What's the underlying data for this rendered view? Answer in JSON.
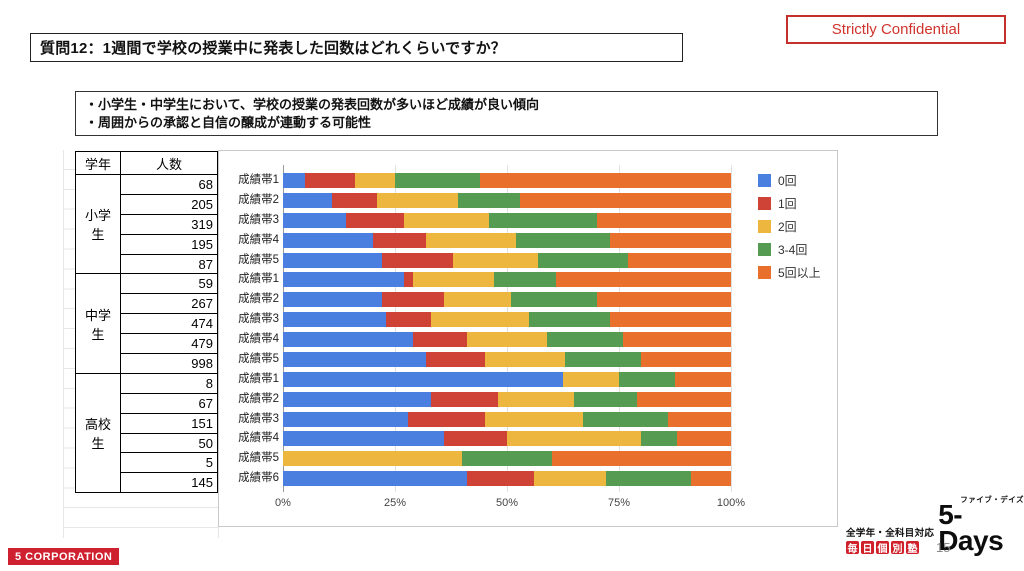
{
  "header": {
    "question_title": "質問12：1週間で学校の授業中に発表した回数はどれくらいですか？",
    "confidential_label": "Strictly Confidential"
  },
  "insight": {
    "lines": [
      "・小学生・中学生において、学校の授業の発表回数が多いほど成績が良い傾向",
      "・周囲からの承認と自信の醸成が連動する可能性"
    ]
  },
  "table": {
    "headers": {
      "grade": "学年",
      "count": "人数"
    },
    "groups": [
      {
        "name": "小学生",
        "counts": [
          68,
          205,
          319,
          195,
          87
        ]
      },
      {
        "name": "中学生",
        "counts": [
          59,
          267,
          474,
          479,
          998
        ]
      },
      {
        "name": "高校生",
        "counts": [
          8,
          67,
          151,
          50,
          5,
          145
        ]
      }
    ]
  },
  "chart_data": {
    "type": "bar",
    "variant": "horizontal-stacked-percent",
    "title": "",
    "xlabel": "",
    "ylabel": "",
    "xlim": [
      0,
      100
    ],
    "x_ticks": [
      "0%",
      "25%",
      "50%",
      "75%",
      "100%"
    ],
    "grid": true,
    "legend_position": "right-inside",
    "legend": [
      "0回",
      "1回",
      "2回",
      "3-4回",
      "5回以上"
    ],
    "colors": [
      "#4a7fe0",
      "#cf4336",
      "#edb63e",
      "#569b52",
      "#e8702c"
    ],
    "groups": [
      {
        "name": "小学生",
        "rows": [
          {
            "label": "成績帯1",
            "values": [
              5,
              11,
              9,
              19,
              56
            ]
          },
          {
            "label": "成績帯2",
            "values": [
              11,
              10,
              18,
              14,
              47
            ]
          },
          {
            "label": "成績帯3",
            "values": [
              14,
              13,
              19,
              24,
              30
            ]
          },
          {
            "label": "成績帯4",
            "values": [
              20,
              12,
              20,
              21,
              27
            ]
          },
          {
            "label": "成績帯5",
            "values": [
              22,
              16,
              19,
              20,
              23
            ]
          }
        ]
      },
      {
        "name": "中学生",
        "rows": [
          {
            "label": "成績帯1",
            "values": [
              27,
              2,
              18,
              14,
              39
            ]
          },
          {
            "label": "成績帯2",
            "values": [
              22,
              14,
              15,
              19,
              30
            ]
          },
          {
            "label": "成績帯3",
            "values": [
              23,
              10,
              22,
              18,
              27
            ]
          },
          {
            "label": "成績帯4",
            "values": [
              29,
              12,
              18,
              17,
              24
            ]
          },
          {
            "label": "成績帯5",
            "values": [
              32,
              13,
              18,
              17,
              20
            ]
          }
        ]
      },
      {
        "name": "高校生",
        "rows": [
          {
            "label": "成績帯1",
            "values": [
              62.5,
              0,
              12.5,
              12.5,
              12.5
            ]
          },
          {
            "label": "成績帯2",
            "values": [
              33,
              15,
              17,
              14,
              21
            ]
          },
          {
            "label": "成績帯3",
            "values": [
              28,
              17,
              22,
              19,
              14
            ]
          },
          {
            "label": "成績帯4",
            "values": [
              36,
              14,
              30,
              8,
              12
            ]
          },
          {
            "label": "成績帯5",
            "values": [
              0,
              0,
              40,
              20,
              40
            ]
          },
          {
            "label": "成績帯6",
            "values": [
              41,
              15,
              16,
              19,
              9
            ]
          }
        ]
      }
    ]
  },
  "footer": {
    "company_logo": "5 CORPORATION",
    "brand_tagline": "全学年・全科目対応",
    "brand_boxes": [
      "毎",
      "日",
      "個",
      "別",
      "塾"
    ],
    "brand_ruby": "ファイブ・デイズ",
    "brand_name": "5-Days",
    "page_number": "15"
  }
}
